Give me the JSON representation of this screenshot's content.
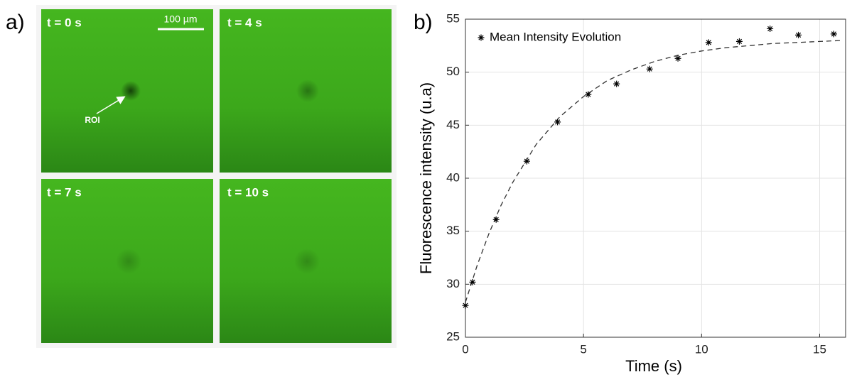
{
  "panel_a": {
    "label": "a)",
    "images": [
      {
        "label": "t = 0 s"
      },
      {
        "label": "t = 4 s"
      },
      {
        "label": "t = 7 s"
      },
      {
        "label": "t = 10 s"
      }
    ],
    "scale_bar": "100 µm",
    "roi": "ROI"
  },
  "chart_data": {
    "type": "scatter",
    "panel_label": "b)",
    "xlabel": "Time (s)",
    "ylabel": "Fluorescence intensity (u.a)",
    "x": [
      0,
      0.3,
      1.3,
      2.6,
      3.9,
      5.2,
      6.4,
      7.8,
      9.0,
      10.3,
      11.6,
      12.9,
      14.1,
      15.6
    ],
    "series": [
      {
        "name": "Mean Intensity Evolution",
        "color": "#000000",
        "values": [
          28.0,
          30.2,
          36.1,
          41.6,
          45.3,
          47.9,
          48.9,
          50.3,
          51.3,
          52.8,
          52.9,
          54.1,
          53.5,
          53.6
        ]
      }
    ],
    "fit": {
      "color": "#333333",
      "x": [
        0,
        0.5,
        1,
        1.5,
        2,
        3,
        4,
        5,
        6,
        7,
        8,
        9,
        10,
        11,
        12,
        13,
        14,
        15,
        16
      ],
      "values": [
        28.3,
        31.8,
        34.8,
        37.4,
        39.6,
        43.2,
        45.8,
        47.7,
        49.2,
        50.2,
        51.0,
        51.6,
        52.0,
        52.3,
        52.5,
        52.7,
        52.8,
        52.9,
        53.0
      ]
    },
    "xlim": [
      0,
      16.1
    ],
    "ylim": [
      25,
      55
    ],
    "xticks": [
      0,
      5,
      10,
      15
    ],
    "yticks": [
      25,
      30,
      35,
      40,
      45,
      50,
      55
    ],
    "grid": true,
    "legend": "upper left"
  }
}
